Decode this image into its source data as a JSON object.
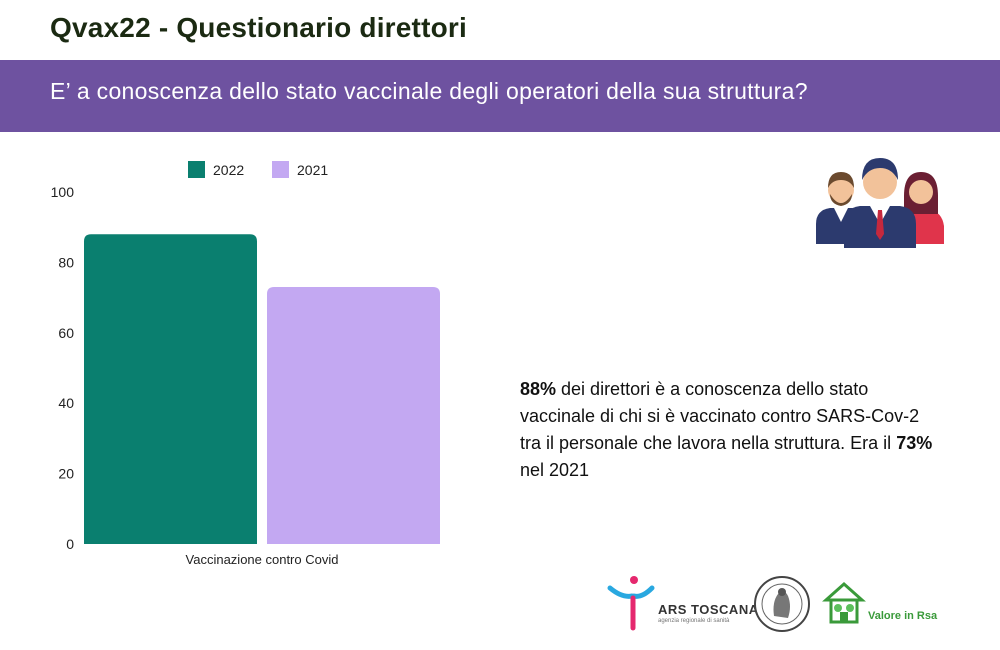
{
  "header": {
    "title": "Qvax22 - Questionario direttori",
    "question": "E’ a conoscenza dello stato vaccinale degli operatori della sua struttura?"
  },
  "chart_data": {
    "type": "bar",
    "categories": [
      "Vaccinazione contro Covid"
    ],
    "series": [
      {
        "name": "2022",
        "values": [
          88
        ],
        "color": "#0a7f6f"
      },
      {
        "name": "2021",
        "values": [
          73
        ],
        "color": "#c3a8f2"
      }
    ],
    "ylim": [
      0,
      100
    ],
    "yticks": [
      0,
      20,
      40,
      60,
      80,
      100
    ],
    "legend": "top",
    "grid": false
  },
  "description": {
    "pct_2022": "88%",
    "part1": " dei direttori è a conoscenza dello stato vaccinale di chi si è vaccinato contro SARS-Cov-2 tra il personale che lavora nella struttura. Era il ",
    "pct_2021": "73%",
    "part2": " nel 2021"
  },
  "logos": {
    "ars_name": "ARS TOSCANA",
    "ars_subtitle": "agenzia regionale di sanità",
    "valore_name": "Valore in Rsa"
  },
  "icons": [
    "people-group-icon",
    "ars-logo-icon",
    "university-seal-icon",
    "valore-in-rsa-logo-icon"
  ]
}
